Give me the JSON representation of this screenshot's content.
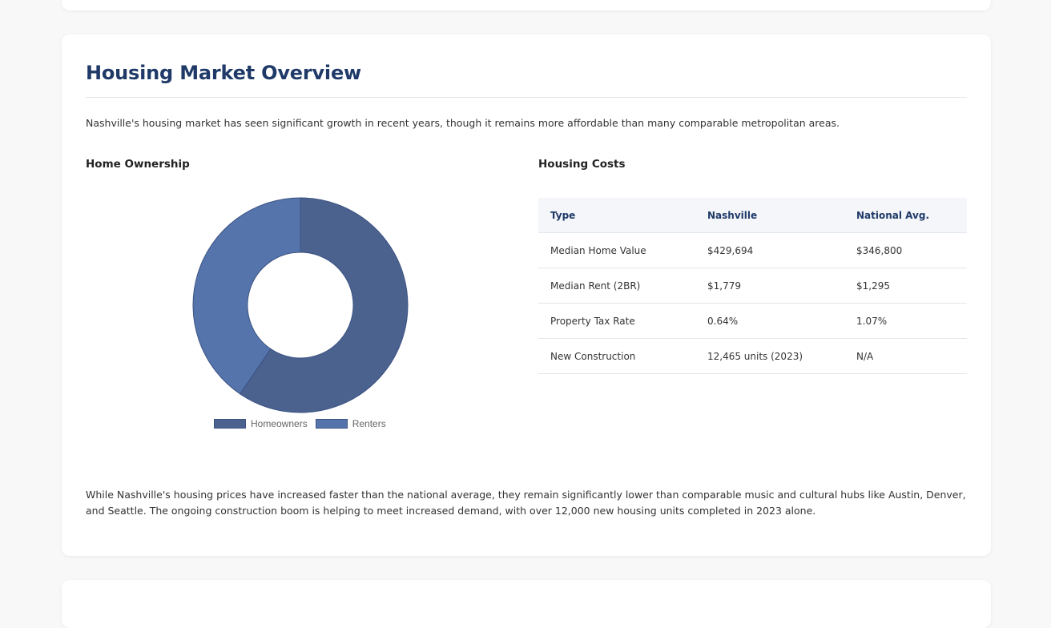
{
  "section": {
    "title": "Housing Market Overview",
    "intro": "Nashville's housing market has seen significant growth in recent years, though it remains more affordable than many comparable metropolitan areas.",
    "outro": "While Nashville's housing prices have increased faster than the national average, they remain significantly lower than comparable music and cultural hubs like Austin, Denver, and Seattle. The ongoing construction boom is helping to meet increased demand, with over 12,000 new housing units completed in 2023 alone."
  },
  "ownership": {
    "heading": "Home Ownership",
    "chart_data": {
      "type": "pie",
      "donut": true,
      "categories": [
        "Homeowners",
        "Renters"
      ],
      "values": [
        59.5,
        40.5
      ],
      "colors": [
        "#4b628f",
        "#5474ab"
      ],
      "legend_position": "bottom"
    }
  },
  "costs": {
    "heading": "Housing Costs",
    "columns": [
      "Type",
      "Nashville",
      "National Avg."
    ],
    "rows": [
      [
        "Median Home Value",
        "$429,694",
        "$346,800"
      ],
      [
        "Median Rent (2BR)",
        "$1,779",
        "$1,295"
      ],
      [
        "Property Tax Rate",
        "0.64%",
        "1.07%"
      ],
      [
        "New Construction",
        "12,465 units (2023)",
        "N/A"
      ]
    ]
  }
}
